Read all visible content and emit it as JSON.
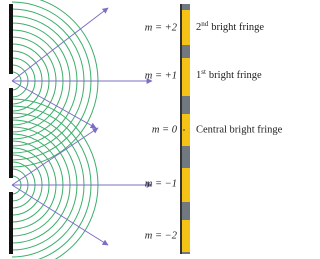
{
  "fringes": [
    {
      "order": "m = +2",
      "label": {
        "ordinal": "2",
        "suffix": "nd",
        "text": "bright fringe"
      }
    },
    {
      "order": "m = +1",
      "label": {
        "ordinal": "1",
        "suffix": "st",
        "text": "bright fringe"
      }
    },
    {
      "order": "m = 0",
      "label": {
        "text": "Central bright fringe"
      }
    },
    {
      "order": "m = −1"
    },
    {
      "order": "m = −2"
    }
  ]
}
